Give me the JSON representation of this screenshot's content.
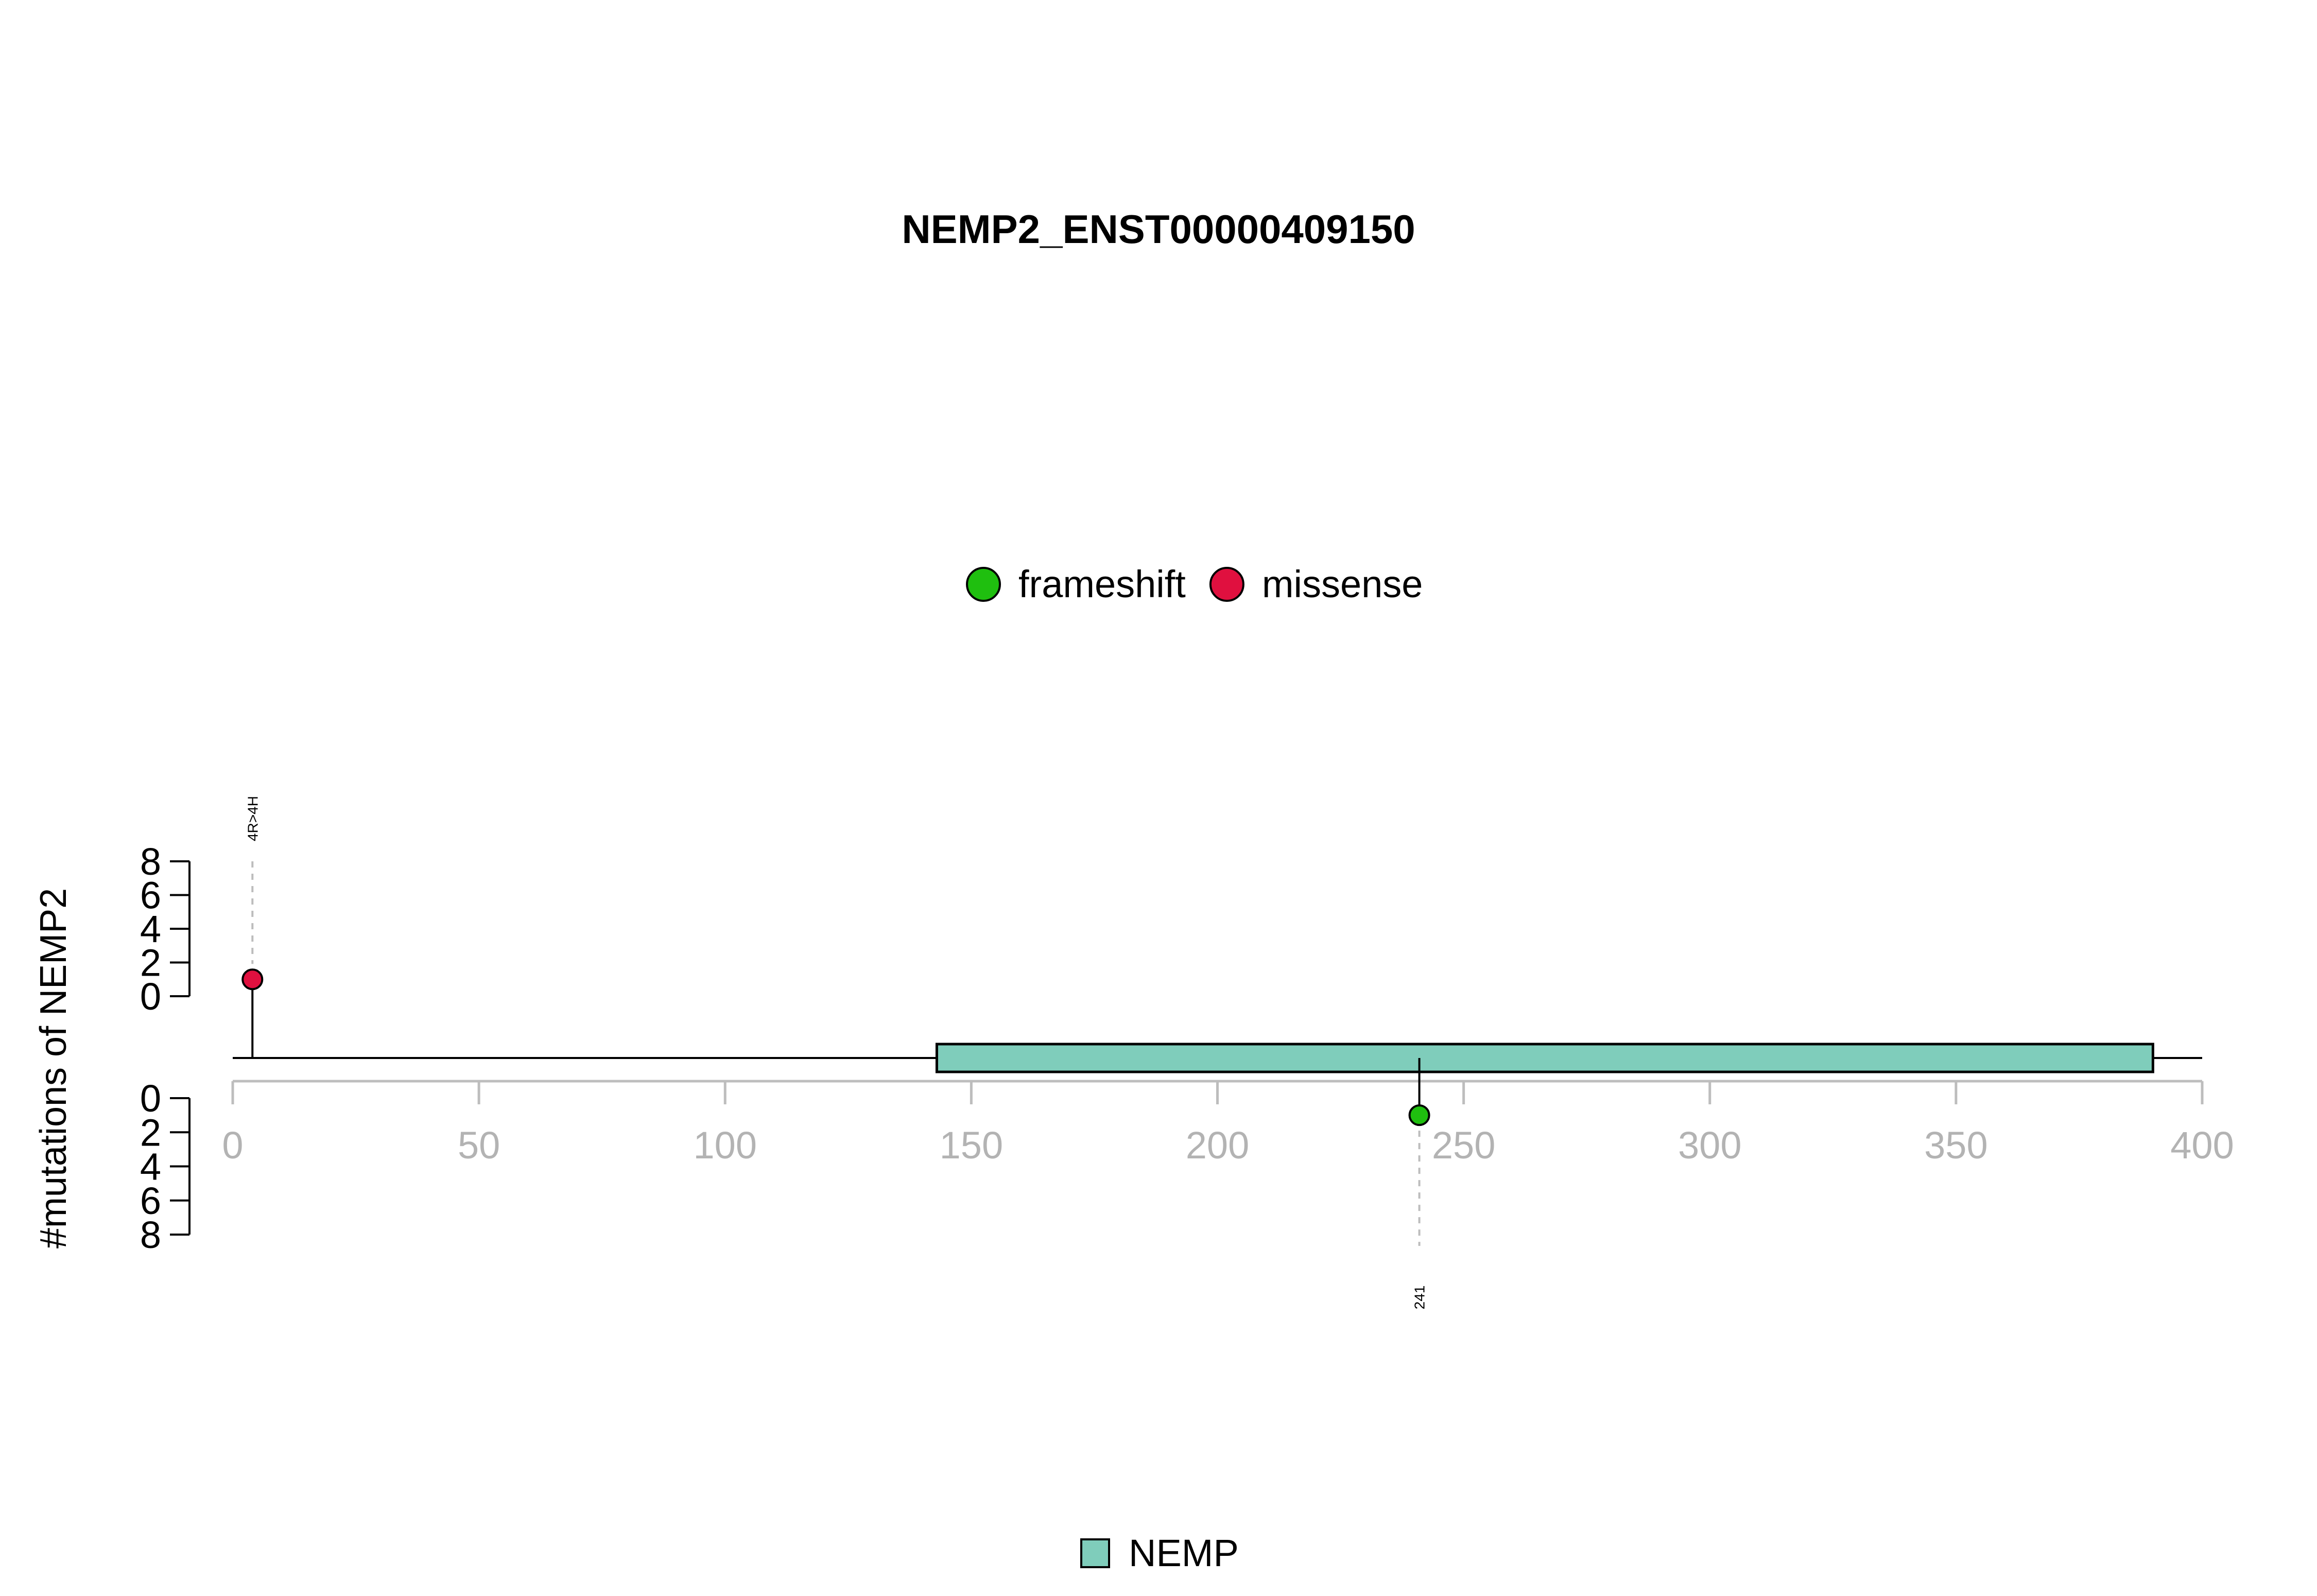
{
  "chart_data": {
    "type": "lollipop",
    "title": "NEMP2_ENST00000409150",
    "ylabel": "#mutations of NEMP2",
    "xlim": [
      0,
      400
    ],
    "x_ticks": [
      0,
      50,
      100,
      150,
      200,
      250,
      300,
      350,
      400
    ],
    "ylim": [
      0,
      8
    ],
    "y_ticks": [
      0,
      2,
      4,
      6,
      8
    ],
    "protein_length": 400,
    "mutation_legend": [
      {
        "label": "frameshift",
        "color": "#1fbf0f"
      },
      {
        "label": "missense",
        "color": "#e0103f"
      }
    ],
    "mutations": [
      {
        "position": 4,
        "count": 1,
        "type": "missense",
        "color": "#e0103f",
        "label": "4R>4H",
        "side": "top"
      },
      {
        "position": 241,
        "count": 1,
        "type": "frameshift",
        "color": "#1fbf0f",
        "label": "241",
        "side": "bottom"
      }
    ],
    "domains": [
      {
        "name": "NEMP",
        "start": 143,
        "end": 390,
        "color": "#7fcdbb"
      }
    ],
    "domain_legend": [
      {
        "label": "NEMP",
        "color": "#7fcdbb"
      }
    ]
  }
}
